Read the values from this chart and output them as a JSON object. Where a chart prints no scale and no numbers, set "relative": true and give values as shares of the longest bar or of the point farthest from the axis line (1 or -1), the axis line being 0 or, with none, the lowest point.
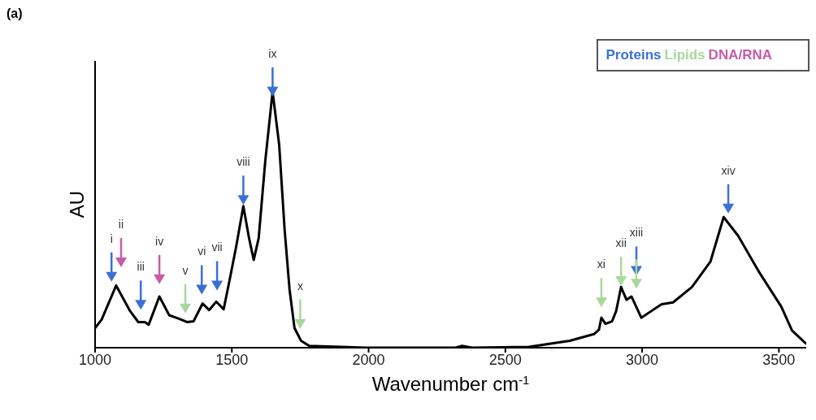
{
  "chart_data": {
    "type": "line",
    "title": "(a)",
    "xlabel": "Wavenumber cm$^{-1}$",
    "ylabel": "AU",
    "relative": true,
    "xlim": [
      1000,
      3600
    ],
    "xticks": [
      1000,
      1500,
      2000,
      2500,
      3000,
      3500
    ],
    "grid": false,
    "series": [
      {
        "color": "#000000",
        "x": [
          1000,
          1024,
          1077,
          1128,
          1158,
          1182,
          1196,
          1235,
          1271,
          1307,
          1336,
          1360,
          1393,
          1417,
          1443,
          1470,
          1491,
          1515,
          1542,
          1563,
          1580,
          1598,
          1622,
          1649,
          1673,
          1693,
          1711,
          1729,
          1753,
          1783,
          1991,
          2318,
          2342,
          2378,
          2586,
          2735,
          2824,
          2842,
          2851,
          2866,
          2890,
          2905,
          2923,
          2943,
          2961,
          2997,
          3071,
          3113,
          3182,
          3250,
          3298,
          3351,
          3429,
          3509,
          3548,
          3598
        ],
        "values": [
          0.077,
          0.11,
          0.243,
          0.143,
          0.1,
          0.1,
          0.09,
          0.2,
          0.127,
          0.113,
          0.1,
          0.103,
          0.173,
          0.147,
          0.18,
          0.15,
          0.26,
          0.39,
          0.553,
          0.427,
          0.343,
          0.427,
          0.727,
          1,
          0.793,
          0.46,
          0.227,
          0.077,
          0.027,
          0.007,
          0,
          0,
          0.007,
          0,
          0.003,
          0.027,
          0.053,
          0.07,
          0.117,
          0.093,
          0.103,
          0.143,
          0.237,
          0.187,
          0.2,
          0.117,
          0.17,
          0.177,
          0.237,
          0.337,
          0.51,
          0.437,
          0.293,
          0.16,
          0.067,
          0.017
        ]
      },
      {
        "type": "scatter",
        "name": "Proteins",
        "color": "#3b6fd6",
        "x": [
          1060,
          1167,
          1390,
          1446,
          1542,
          1649,
          2979,
          3315
        ],
        "values": [
          0.277,
          0.167,
          0.227,
          0.243,
          0.577,
          1,
          0.3,
          0.543
        ]
      },
      {
        "type": "scatter",
        "name": "Lipids",
        "color": "#a9d89c",
        "x": [
          1330,
          1750,
          2851,
          2923,
          2979
        ],
        "values": [
          0.153,
          0.093,
          0.177,
          0.26,
          0.25
        ]
      },
      {
        "type": "scatter",
        "name": "DNA/RNA",
        "color": "#c95ba6",
        "x": [
          1095,
          1235
        ],
        "values": [
          0.333,
          0.267
        ]
      }
    ],
    "annotations": [
      {
        "text": "i",
        "x": 1060,
        "y": 0.277
      },
      {
        "text": "ii",
        "x": 1095,
        "y": 0.333
      },
      {
        "text": "iii",
        "x": 1167,
        "y": 0.167
      },
      {
        "text": "iv",
        "x": 1235,
        "y": 0.267
      },
      {
        "text": "v",
        "x": 1330,
        "y": 0.153
      },
      {
        "text": "vi",
        "x": 1390,
        "y": 0.227
      },
      {
        "text": "vii",
        "x": 1446,
        "y": 0.243
      },
      {
        "text": "viii",
        "x": 1542,
        "y": 0.577
      },
      {
        "text": "ix",
        "x": 1649,
        "y": 1
      },
      {
        "text": "x",
        "x": 1750,
        "y": 0.093
      },
      {
        "text": "xi",
        "x": 2851,
        "y": 0.177
      },
      {
        "text": "xii",
        "x": 2923,
        "y": 0.26
      },
      {
        "text": "xiii",
        "x": 2979,
        "y": 0.3
      },
      {
        "text": "xiv",
        "x": 3315,
        "y": 0.543
      }
    ]
  }
}
